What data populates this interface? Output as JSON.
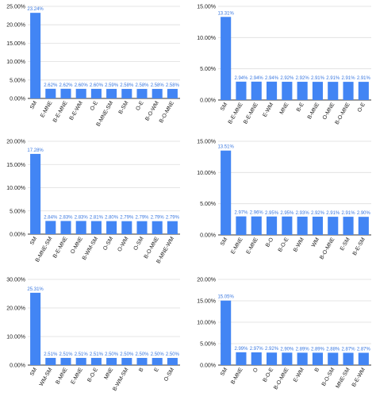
{
  "colors": {
    "bar": "#4285F4",
    "label": "#3a78e0",
    "grid": "#dddddd",
    "axis": "#333333"
  },
  "chart_data": [
    {
      "type": "bar",
      "ylim": [
        0,
        0.25
      ],
      "yticks": [
        "0.00%",
        "5.00%",
        "10.00%",
        "15.00%",
        "20.00%",
        "25.00%"
      ],
      "grid": true,
      "categories": [
        "SM",
        "E-MNE",
        "B-E-MNE",
        "B-E-WM",
        "O-E",
        "B-MNE-SM",
        "B-SM",
        "O-E",
        "B-O-WM",
        "B-O-MNE"
      ],
      "values": [
        0.2324,
        0.0262,
        0.0262,
        0.026,
        0.026,
        0.0259,
        0.0258,
        0.0258,
        0.0258,
        0.0258
      ],
      "data_labels": [
        "23.24%",
        "2.62%",
        "2.62%",
        "2.60%",
        "2.60%",
        "2.59%",
        "2.58%",
        "2.58%",
        "2.58%",
        "2.58%"
      ]
    },
    {
      "type": "bar",
      "ylim": [
        0,
        0.15
      ],
      "yticks": [
        "0.00%",
        "5.00%",
        "10.00%",
        "15.00%"
      ],
      "grid": true,
      "categories": [
        "SM",
        "B-E-MNE",
        "B-E-MNE",
        "E-WM",
        "MNE",
        "B-E",
        "B-MNE",
        "O-MNE",
        "B-O-MNE",
        "O-E"
      ],
      "values": [
        0.1331,
        0.0294,
        0.0294,
        0.0294,
        0.0292,
        0.0292,
        0.0291,
        0.0291,
        0.0291,
        0.0291
      ],
      "data_labels": [
        "13.31%",
        "2.94%",
        "2.94%",
        "2.94%",
        "2.92%",
        "2.92%",
        "2.91%",
        "2.91%",
        "2.91%",
        "2.91%"
      ]
    },
    {
      "type": "bar",
      "ylim": [
        0,
        0.2
      ],
      "yticks": [
        "0.00%",
        "5.00%",
        "10.00%",
        "15.00%",
        "20.00%"
      ],
      "grid": true,
      "categories": [
        "SM",
        "B-MNE-SM",
        "B-E-MNE",
        "O-MNE",
        "B-WM-SM",
        "O-SM",
        "O-WM",
        "O-SM",
        "B-O-MNE",
        "B-MNE-WM"
      ],
      "values": [
        0.1728,
        0.0284,
        0.0283,
        0.0283,
        0.0281,
        0.028,
        0.0279,
        0.0279,
        0.0279,
        0.0279
      ],
      "data_labels": [
        "17.28%",
        "2.84%",
        "2.83%",
        "2.83%",
        "2.81%",
        "2.80%",
        "2.79%",
        "2.79%",
        "2.79%",
        "2.79%"
      ]
    },
    {
      "type": "bar",
      "ylim": [
        0,
        0.15
      ],
      "yticks": [
        "0.00%",
        "5.00%",
        "10.00%",
        "15.00%"
      ],
      "grid": true,
      "categories": [
        "SM",
        "E-MNE",
        "E-MNE",
        "B-O",
        "B-O-E",
        "B-WM",
        "WM",
        "B-O-MNE",
        "E-SM",
        "B-E-SM"
      ],
      "values": [
        0.1351,
        0.0297,
        0.0296,
        0.0295,
        0.0295,
        0.0293,
        0.0292,
        0.0291,
        0.0291,
        0.029
      ],
      "data_labels": [
        "13.51%",
        "2.97%",
        "2.96%",
        "2.95%",
        "2.95%",
        "2.93%",
        "2.92%",
        "2.91%",
        "2.91%",
        "2.90%"
      ]
    },
    {
      "type": "bar",
      "ylim": [
        0,
        0.3
      ],
      "yticks": [
        "0.00%",
        "10.00%",
        "20.00%",
        "30.00%"
      ],
      "grid": true,
      "categories": [
        "SM",
        "WM-SM",
        "B-MNE",
        "E-MNE",
        "B-O-E",
        "MNE",
        "B-WM-SM",
        "B",
        "E",
        "O-SM"
      ],
      "values": [
        0.2531,
        0.0251,
        0.0251,
        0.0251,
        0.0251,
        0.025,
        0.025,
        0.025,
        0.025,
        0.025
      ],
      "data_labels": [
        "25.31%",
        "2.51%",
        "2.51%",
        "2.51%",
        "2.51%",
        "2.50%",
        "2.50%",
        "2.50%",
        "2.50%",
        "2.50%"
      ]
    },
    {
      "type": "bar",
      "ylim": [
        0,
        0.2
      ],
      "yticks": [
        "0.00%",
        "5.00%",
        "10.00%",
        "15.00%",
        "20.00%"
      ],
      "grid": true,
      "categories": [
        "SM",
        "B-MNE",
        "O",
        "B-O-E",
        "B-O-MNE",
        "E-WM",
        "B",
        "B-O-SM",
        "MNE-SM",
        "B-E-WM"
      ],
      "values": [
        0.1505,
        0.0299,
        0.0297,
        0.0292,
        0.029,
        0.0289,
        0.0289,
        0.0288,
        0.0287,
        0.0287
      ],
      "data_labels": [
        "15.05%",
        "2.99%",
        "2.97%",
        "2.92%",
        "2.90%",
        "2.89%",
        "2.89%",
        "2.88%",
        "2.87%",
        "2.87%"
      ]
    }
  ]
}
